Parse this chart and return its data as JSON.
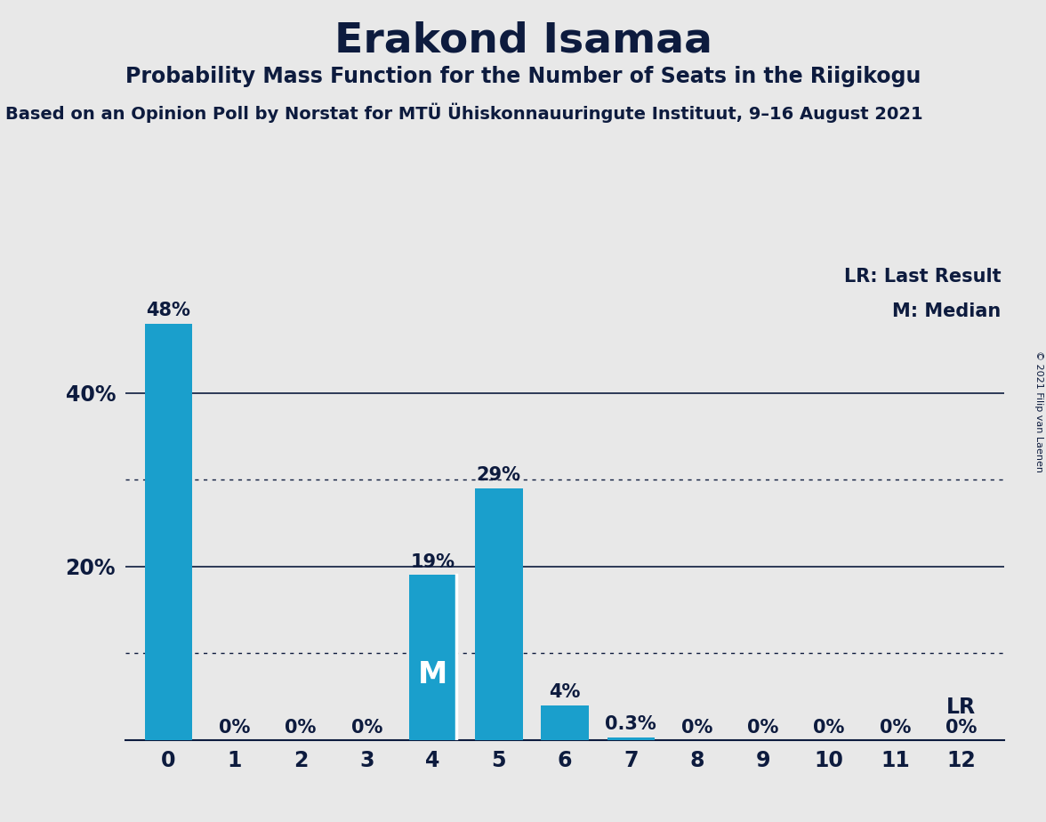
{
  "title": "Erakond Isamaa",
  "subtitle": "Probability Mass Function for the Number of Seats in the Riigikogu",
  "source": "Based on an Opinion Poll by Norstat for MTÜ Ühiskonnauuringute Instituut, 9–16 August 2021",
  "copyright": "© 2021 Filip van Laenen",
  "seats": [
    0,
    1,
    2,
    3,
    4,
    5,
    6,
    7,
    8,
    9,
    10,
    11,
    12
  ],
  "probabilities": [
    0.48,
    0.0,
    0.0,
    0.0,
    0.19,
    0.29,
    0.04,
    0.003,
    0.0,
    0.0,
    0.0,
    0.0,
    0.0
  ],
  "labels": [
    "48%",
    "0%",
    "0%",
    "0%",
    "19%",
    "29%",
    "4%",
    "0.3%",
    "0%",
    "0%",
    "0%",
    "0%",
    "0%"
  ],
  "bar_color": "#1a9fcc",
  "background_color": "#e8e8e8",
  "median_seat": 4,
  "lr_seat": 12,
  "solid_gridlines": [
    0.2,
    0.4
  ],
  "dotted_gridlines": [
    0.1,
    0.3
  ],
  "ylim": [
    0,
    0.55
  ],
  "legend_lr": "LR: Last Result",
  "legend_m": "M: Median",
  "lr_label": "LR",
  "m_label": "M",
  "title_fontsize": 34,
  "subtitle_fontsize": 17,
  "source_fontsize": 14,
  "bar_label_fontsize": 15,
  "tick_fontsize": 17,
  "legend_fontsize": 15,
  "text_color": "#0d1b3e",
  "copyright_fontsize": 8
}
